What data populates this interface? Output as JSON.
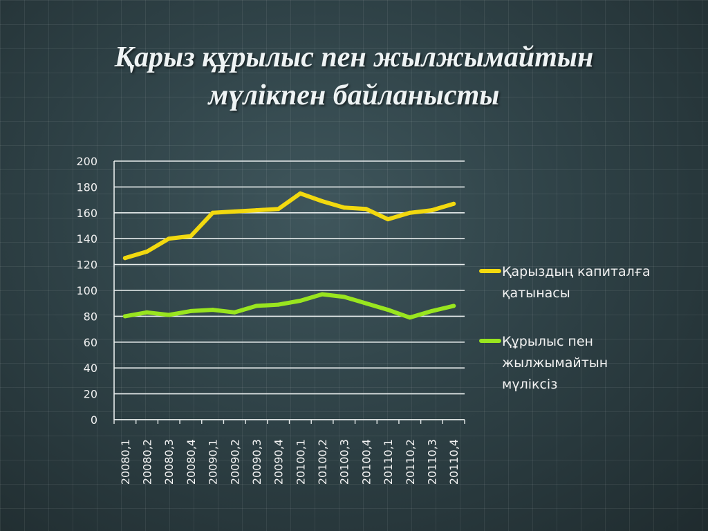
{
  "slide": {
    "title_line1": "Қарыз құрылыс пен жылжымайтын",
    "title_line2": "мүлікпен байланысты"
  },
  "chart_data": {
    "type": "line",
    "title": "",
    "xlabel": "",
    "ylabel": "",
    "ylim": [
      0,
      200
    ],
    "y_ticks": [
      0,
      20,
      40,
      60,
      80,
      100,
      120,
      140,
      160,
      180,
      200
    ],
    "grid": true,
    "legend_position": "right",
    "categories": [
      "20080,1",
      "20080,2",
      "20080,3",
      "20080,4",
      "20090,1",
      "20090,2",
      "20090,3",
      "20090,4",
      "20100,1",
      "20100,2",
      "20100,3",
      "20100,4",
      "20110,1",
      "20110,2",
      "20110,3",
      "20110,4"
    ],
    "series": [
      {
        "name": "Қарыздың капиталға қатынасы",
        "legend_lines": [
          "Қарыздың капиталға",
          "қатынасы"
        ],
        "color": "#f2d90f",
        "values": [
          125,
          130,
          140,
          142,
          160,
          161,
          162,
          163,
          175,
          169,
          164,
          163,
          155,
          160,
          162,
          167
        ]
      },
      {
        "name": "Құрылыс пен жылжымайтын мүліксіз",
        "legend_lines": [
          "Құрылыс пен",
          "жылжымайтын",
          "мүліксіз"
        ],
        "color": "#99e51f",
        "values": [
          80,
          83,
          81,
          84,
          85,
          83,
          88,
          89,
          92,
          97,
          95,
          90,
          85,
          79,
          84,
          88
        ]
      }
    ]
  }
}
